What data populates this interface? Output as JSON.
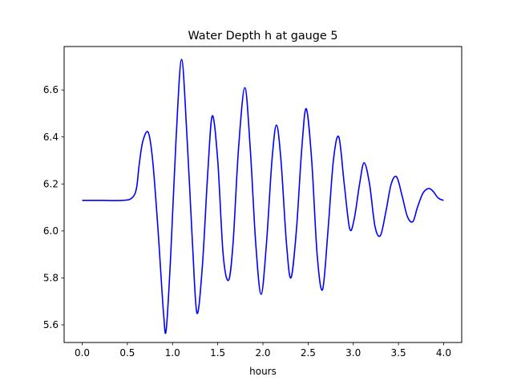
{
  "chart_data": {
    "type": "line",
    "title": "Water Depth h at gauge 5",
    "xlabel": "hours",
    "ylabel": "",
    "xlim": [
      -0.2,
      4.2
    ],
    "ylim": [
      5.525,
      6.785
    ],
    "xticks": [
      0.0,
      0.5,
      1.0,
      1.5,
      2.0,
      2.5,
      3.0,
      3.5,
      4.0
    ],
    "xtick_labels": [
      "0.0",
      "0.5",
      "1.0",
      "1.5",
      "2.0",
      "2.5",
      "3.0",
      "3.5",
      "4.0"
    ],
    "yticks": [
      5.6,
      5.8,
      6.0,
      6.2,
      6.4,
      6.6
    ],
    "ytick_labels": [
      "5.6",
      "5.8",
      "6.0",
      "6.2",
      "6.4",
      "6.6"
    ],
    "grid": false,
    "series": [
      {
        "color": "#0000ff",
        "x": [
          0.0,
          0.2,
          0.45,
          0.55,
          0.6,
          0.63,
          0.67,
          0.73,
          0.78,
          0.84,
          0.9,
          0.93,
          0.98,
          1.04,
          1.1,
          1.16,
          1.22,
          1.27,
          1.33,
          1.39,
          1.44,
          1.5,
          1.56,
          1.62,
          1.67,
          1.73,
          1.8,
          1.86,
          1.92,
          1.98,
          2.04,
          2.1,
          2.15,
          2.2,
          2.26,
          2.31,
          2.37,
          2.43,
          2.48,
          2.54,
          2.6,
          2.66,
          2.72,
          2.78,
          2.84,
          2.9,
          2.96,
          3.01,
          3.07,
          3.12,
          3.18,
          3.24,
          3.3,
          3.36,
          3.42,
          3.48,
          3.54,
          3.6,
          3.66,
          3.71,
          3.77,
          3.83,
          3.88,
          3.94,
          4.0
        ],
        "y": [
          6.13,
          6.13,
          6.13,
          6.14,
          6.18,
          6.28,
          6.38,
          6.42,
          6.3,
          6.0,
          5.65,
          5.58,
          5.9,
          6.4,
          6.73,
          6.4,
          5.95,
          5.65,
          5.85,
          6.25,
          6.49,
          6.3,
          5.9,
          5.79,
          5.95,
          6.35,
          6.61,
          6.35,
          5.95,
          5.73,
          5.95,
          6.3,
          6.45,
          6.3,
          5.95,
          5.8,
          6.0,
          6.35,
          6.52,
          6.3,
          5.9,
          5.75,
          6.0,
          6.3,
          6.4,
          6.2,
          6.01,
          6.05,
          6.2,
          6.29,
          6.2,
          6.02,
          5.98,
          6.08,
          6.2,
          6.23,
          6.15,
          6.06,
          6.04,
          6.1,
          6.16,
          6.18,
          6.17,
          6.14,
          6.13
        ]
      }
    ]
  }
}
